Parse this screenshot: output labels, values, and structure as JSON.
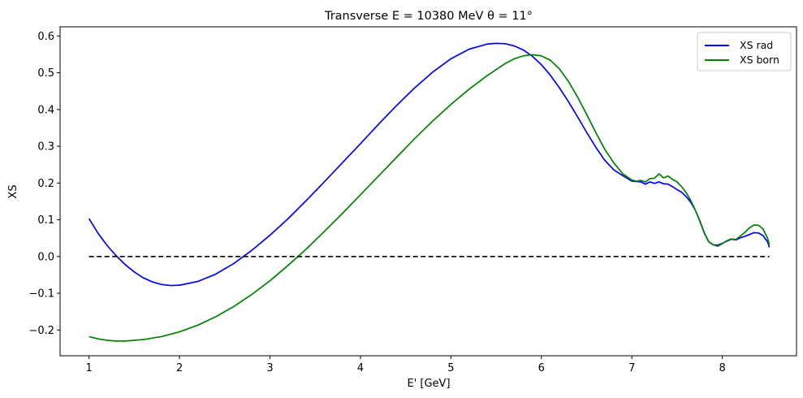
{
  "chart_data": {
    "type": "line",
    "title": "Transverse E = 10380 MeV θ = 11°",
    "xlabel": "E' [GeV]",
    "ylabel": "XS",
    "xlim": [
      0.68,
      8.82
    ],
    "ylim": [
      -0.27,
      0.625
    ],
    "xticks": [
      1,
      2,
      3,
      4,
      5,
      6,
      7,
      8
    ],
    "yticks": [
      -0.2,
      -0.1,
      0.0,
      0.1,
      0.2,
      0.3,
      0.4,
      0.5,
      0.6
    ],
    "ytick_labels": [
      "−0.2",
      "−0.1",
      "0.0",
      "0.1",
      "0.2",
      "0.3",
      "0.4",
      "0.5",
      "0.6"
    ],
    "legend_position": "top-right",
    "grid": false,
    "series": [
      {
        "name": "XS rad",
        "color": "#0000ff",
        "points": [
          [
            1.0,
            0.103
          ],
          [
            1.1,
            0.063
          ],
          [
            1.2,
            0.03
          ],
          [
            1.3,
            0.002
          ],
          [
            1.4,
            -0.022
          ],
          [
            1.5,
            -0.042
          ],
          [
            1.6,
            -0.058
          ],
          [
            1.7,
            -0.069
          ],
          [
            1.8,
            -0.076
          ],
          [
            1.9,
            -0.079
          ],
          [
            2.0,
            -0.078
          ],
          [
            2.2,
            -0.068
          ],
          [
            2.4,
            -0.048
          ],
          [
            2.6,
            -0.019
          ],
          [
            2.8,
            0.017
          ],
          [
            3.0,
            0.058
          ],
          [
            3.2,
            0.103
          ],
          [
            3.4,
            0.152
          ],
          [
            3.6,
            0.203
          ],
          [
            3.8,
            0.255
          ],
          [
            4.0,
            0.307
          ],
          [
            4.2,
            0.36
          ],
          [
            4.4,
            0.411
          ],
          [
            4.6,
            0.459
          ],
          [
            4.8,
            0.502
          ],
          [
            5.0,
            0.538
          ],
          [
            5.2,
            0.564
          ],
          [
            5.4,
            0.578
          ],
          [
            5.5,
            0.58
          ],
          [
            5.6,
            0.579
          ],
          [
            5.7,
            0.573
          ],
          [
            5.8,
            0.562
          ],
          [
            5.9,
            0.545
          ],
          [
            6.0,
            0.522
          ],
          [
            6.1,
            0.493
          ],
          [
            6.2,
            0.459
          ],
          [
            6.3,
            0.421
          ],
          [
            6.4,
            0.38
          ],
          [
            6.5,
            0.338
          ],
          [
            6.6,
            0.298
          ],
          [
            6.7,
            0.262
          ],
          [
            6.8,
            0.236
          ],
          [
            6.9,
            0.22
          ],
          [
            7.0,
            0.205
          ],
          [
            7.1,
            0.203
          ],
          [
            7.15,
            0.197
          ],
          [
            7.2,
            0.203
          ],
          [
            7.25,
            0.199
          ],
          [
            7.3,
            0.203
          ],
          [
            7.35,
            0.198
          ],
          [
            7.4,
            0.197
          ],
          [
            7.45,
            0.19
          ],
          [
            7.5,
            0.182
          ],
          [
            7.55,
            0.175
          ],
          [
            7.6,
            0.163
          ],
          [
            7.65,
            0.148
          ],
          [
            7.7,
            0.127
          ],
          [
            7.75,
            0.098
          ],
          [
            7.8,
            0.065
          ],
          [
            7.85,
            0.04
          ],
          [
            7.9,
            0.032
          ],
          [
            7.95,
            0.031
          ],
          [
            8.0,
            0.036
          ],
          [
            8.05,
            0.042
          ],
          [
            8.1,
            0.047
          ],
          [
            8.15,
            0.045
          ],
          [
            8.2,
            0.051
          ],
          [
            8.25,
            0.055
          ],
          [
            8.3,
            0.06
          ],
          [
            8.35,
            0.065
          ],
          [
            8.4,
            0.064
          ],
          [
            8.45,
            0.057
          ],
          [
            8.5,
            0.04
          ],
          [
            8.52,
            0.025
          ]
        ]
      },
      {
        "name": "XS born",
        "color": "#008000",
        "points": [
          [
            1.0,
            -0.218
          ],
          [
            1.1,
            -0.224
          ],
          [
            1.2,
            -0.228
          ],
          [
            1.3,
            -0.23
          ],
          [
            1.4,
            -0.23
          ],
          [
            1.6,
            -0.226
          ],
          [
            1.8,
            -0.218
          ],
          [
            2.0,
            -0.205
          ],
          [
            2.2,
            -0.187
          ],
          [
            2.4,
            -0.164
          ],
          [
            2.6,
            -0.136
          ],
          [
            2.8,
            -0.103
          ],
          [
            3.0,
            -0.066
          ],
          [
            3.2,
            -0.024
          ],
          [
            3.4,
            0.02
          ],
          [
            3.6,
            0.068
          ],
          [
            3.8,
            0.117
          ],
          [
            4.0,
            0.168
          ],
          [
            4.2,
            0.219
          ],
          [
            4.4,
            0.27
          ],
          [
            4.6,
            0.321
          ],
          [
            4.8,
            0.369
          ],
          [
            5.0,
            0.414
          ],
          [
            5.2,
            0.455
          ],
          [
            5.4,
            0.492
          ],
          [
            5.6,
            0.525
          ],
          [
            5.7,
            0.538
          ],
          [
            5.8,
            0.546
          ],
          [
            5.9,
            0.549
          ],
          [
            6.0,
            0.546
          ],
          [
            6.1,
            0.534
          ],
          [
            6.2,
            0.51
          ],
          [
            6.3,
            0.476
          ],
          [
            6.4,
            0.434
          ],
          [
            6.5,
            0.387
          ],
          [
            6.6,
            0.338
          ],
          [
            6.7,
            0.292
          ],
          [
            6.8,
            0.255
          ],
          [
            6.9,
            0.225
          ],
          [
            7.0,
            0.208
          ],
          [
            7.05,
            0.205
          ],
          [
            7.1,
            0.207
          ],
          [
            7.15,
            0.203
          ],
          [
            7.2,
            0.212
          ],
          [
            7.25,
            0.213
          ],
          [
            7.3,
            0.225
          ],
          [
            7.35,
            0.214
          ],
          [
            7.4,
            0.219
          ],
          [
            7.45,
            0.21
          ],
          [
            7.5,
            0.203
          ],
          [
            7.55,
            0.19
          ],
          [
            7.6,
            0.174
          ],
          [
            7.65,
            0.153
          ],
          [
            7.7,
            0.127
          ],
          [
            7.75,
            0.097
          ],
          [
            7.8,
            0.064
          ],
          [
            7.85,
            0.04
          ],
          [
            7.9,
            0.032
          ],
          [
            7.95,
            0.028
          ],
          [
            8.0,
            0.035
          ],
          [
            8.05,
            0.043
          ],
          [
            8.1,
            0.048
          ],
          [
            8.15,
            0.046
          ],
          [
            8.2,
            0.056
          ],
          [
            8.25,
            0.066
          ],
          [
            8.3,
            0.078
          ],
          [
            8.35,
            0.086
          ],
          [
            8.4,
            0.085
          ],
          [
            8.45,
            0.075
          ],
          [
            8.5,
            0.05
          ],
          [
            8.52,
            0.032
          ]
        ]
      },
      {
        "name": "",
        "color": "#000000",
        "dashed": true,
        "points": [
          [
            1.0,
            0.0
          ],
          [
            8.52,
            0.0
          ]
        ]
      }
    ]
  }
}
